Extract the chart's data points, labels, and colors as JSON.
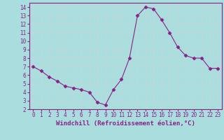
{
  "x": [
    0,
    1,
    2,
    3,
    4,
    5,
    6,
    7,
    8,
    9,
    10,
    11,
    12,
    13,
    14,
    15,
    16,
    17,
    18,
    19,
    20,
    21,
    22,
    23
  ],
  "y": [
    7.0,
    6.5,
    5.8,
    5.3,
    4.7,
    4.5,
    4.3,
    4.0,
    2.8,
    2.5,
    4.3,
    5.5,
    8.0,
    13.0,
    14.0,
    13.8,
    12.5,
    11.0,
    9.3,
    8.3,
    8.0,
    8.0,
    6.8,
    6.8
  ],
  "line_color": "#882288",
  "marker": "D",
  "marker_size": 2.5,
  "bg_color": "#aadddd",
  "grid_color": "#c4d8d8",
  "xlim": [
    -0.5,
    23.5
  ],
  "ylim": [
    2,
    14.5
  ],
  "yticks": [
    2,
    3,
    4,
    5,
    6,
    7,
    8,
    9,
    10,
    11,
    12,
    13,
    14
  ],
  "xticks": [
    0,
    1,
    2,
    3,
    4,
    5,
    6,
    7,
    8,
    9,
    10,
    11,
    12,
    13,
    14,
    15,
    16,
    17,
    18,
    19,
    20,
    21,
    22,
    23
  ],
  "xlabel": "Windchill (Refroidissement éolien,°C)",
  "tick_color": "#882288",
  "label_color": "#882288",
  "spine_color": "#882288",
  "xlabel_fontsize": 6.5,
  "tick_fontsize": 5.5,
  "linewidth": 0.8
}
